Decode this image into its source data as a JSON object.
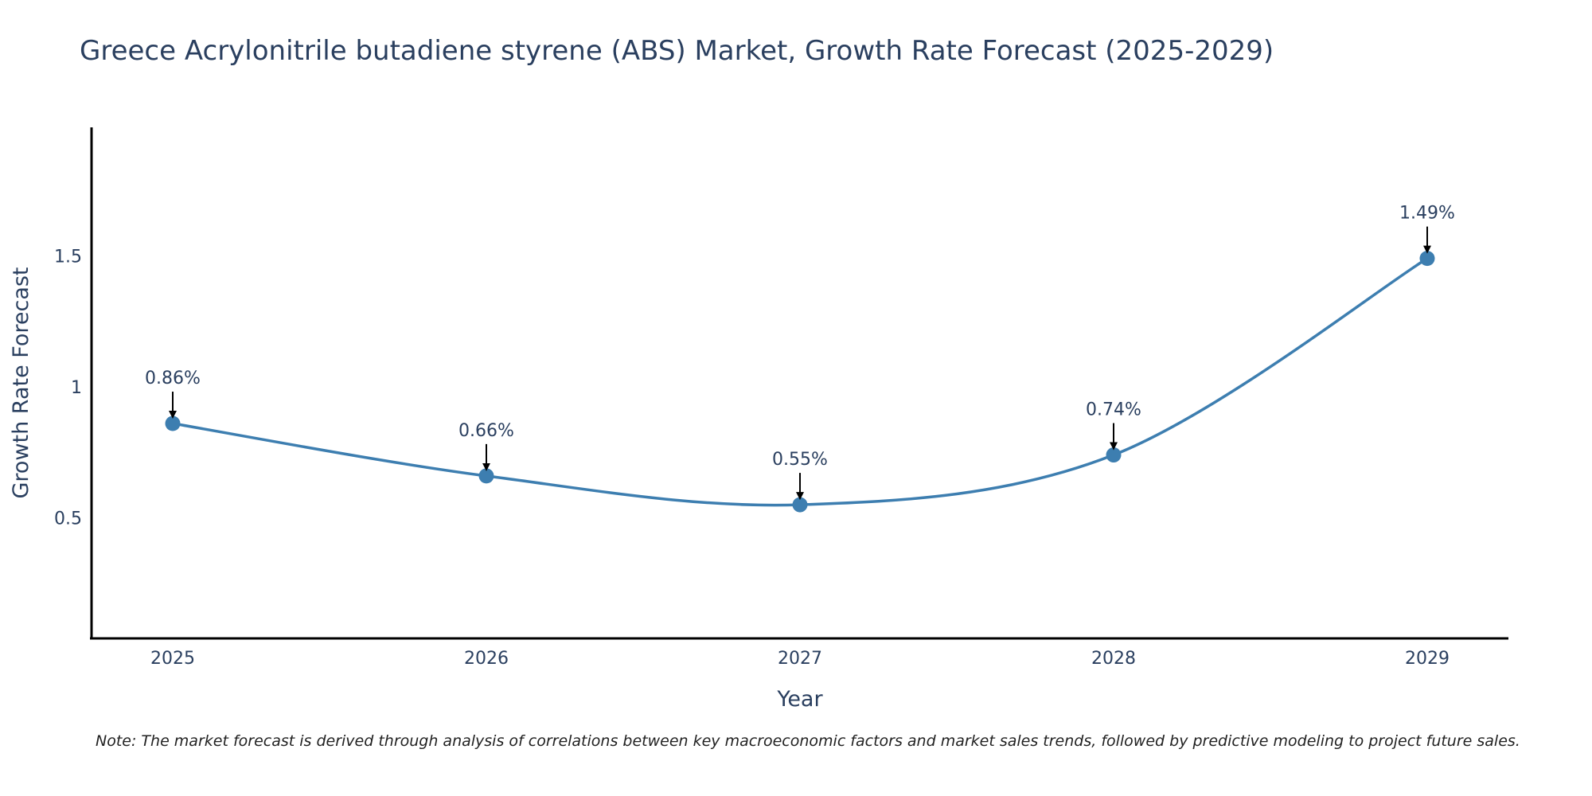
{
  "chart_data": {
    "type": "line",
    "title": "Greece Acrylonitrile butadiene styrene (ABS) Market, Growth Rate Forecast (2025-2029)",
    "xlabel": "Year",
    "ylabel": "Growth Rate Forecast",
    "categories": [
      "2025",
      "2026",
      "2027",
      "2028",
      "2029"
    ],
    "series": [
      {
        "name": "Growth Rate Forecast",
        "values": [
          0.86,
          0.66,
          0.55,
          0.74,
          1.49
        ],
        "labels": [
          "0.86%",
          "0.66%",
          "0.55%",
          "0.74%",
          "1.49%"
        ],
        "color": "#3d7eb0"
      }
    ],
    "yticks": [
      {
        "value": 0.5,
        "label": "0.5"
      },
      {
        "value": 1,
        "label": "1"
      },
      {
        "value": 1.5,
        "label": "1.5"
      }
    ],
    "ylim": [
      0.04,
      1.99
    ],
    "grid": false,
    "note": "Note: The market forecast is derived through analysis of correlations between key macroeconomic factors and market sales trends, followed by predictive modeling to project future sales."
  },
  "colors": {
    "line": "#3d7eb0",
    "marker": "#3d7eb0",
    "axis": "#000000",
    "text": "#2a3f5f",
    "arrow": "#000000"
  }
}
